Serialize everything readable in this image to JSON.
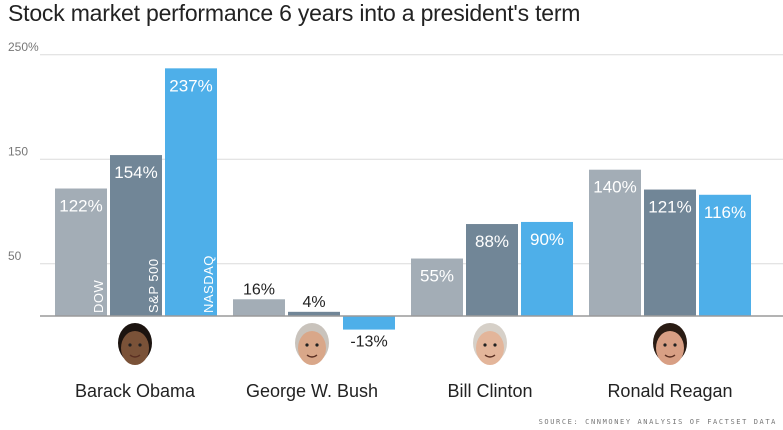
{
  "title": "Stock market performance 6 years into a president's term",
  "source": "SOURCE: CNNMONEY ANALYSIS OF FACTSET DATA",
  "chart_data": {
    "type": "bar",
    "categories": [
      "Barack Obama",
      "George W. Bush",
      "Bill Clinton",
      "Ronald Reagan"
    ],
    "series": [
      {
        "name": "DOW",
        "values": [
          122,
          16,
          55,
          140
        ],
        "labels": [
          "122%",
          "16%",
          "55%",
          "140%"
        ],
        "color": "#a3adb6"
      },
      {
        "name": "S&P 500",
        "values": [
          154,
          4,
          88,
          121
        ],
        "labels": [
          "154%",
          "4%",
          "88%",
          "121%"
        ],
        "color": "#718697"
      },
      {
        "name": "NASDAQ",
        "values": [
          237,
          -13,
          90,
          116
        ],
        "labels": [
          "237%",
          "-13%",
          "90%",
          "116%"
        ],
        "color": "#4eafe9"
      }
    ],
    "y_ticks": [
      {
        "value": 250,
        "label": "250%"
      },
      {
        "value": 150,
        "label": "150"
      },
      {
        "value": 50,
        "label": "50"
      }
    ],
    "ylim": [
      -15,
      255
    ],
    "grid": true,
    "series_labels_in_first_group": true
  },
  "portraits": [
    {
      "name": "barack-obama-portrait",
      "skin": "#7a5238",
      "hair": "#1c1410"
    },
    {
      "name": "george-w-bush-portrait",
      "skin": "#d9a789",
      "hair": "#c9c3bc"
    },
    {
      "name": "bill-clinton-portrait",
      "skin": "#e3b59a",
      "hair": "#d6d0c8"
    },
    {
      "name": "ronald-reagan-portrait",
      "skin": "#d89f84",
      "hair": "#2a1c14"
    }
  ]
}
